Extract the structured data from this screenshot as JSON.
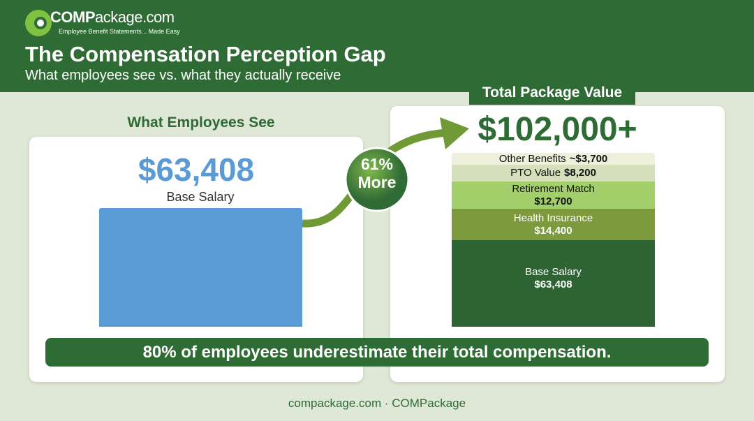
{
  "header": {
    "logo": {
      "brand_bold": "COMP",
      "brand_rest": "ackage.com",
      "tagline": "Employee Benefit Statements... Made Easy"
    },
    "title": "The Compensation Perception Gap",
    "subtitle": "What employees see vs. what they actually receive"
  },
  "left_panel": {
    "heading": "What Employees See",
    "amount": "$63,408",
    "label": "Base Salary"
  },
  "badge": {
    "percent": "61%",
    "word": "More"
  },
  "right_panel": {
    "heading": "Total Package Value",
    "amount": "$102,000+",
    "segments": [
      {
        "label": "Other Benefits",
        "value": "~$3,700"
      },
      {
        "label": "PTO Value",
        "value": "$8,200"
      },
      {
        "label": "Retirement Match",
        "value": "$12,700"
      },
      {
        "label": "Health Insurance",
        "value": "$14,400"
      },
      {
        "label": "Base Salary",
        "value": "$63,408"
      }
    ]
  },
  "banner": "80% of employees underestimate their total compensation.",
  "footer": "compackage.com · COMPackage"
}
